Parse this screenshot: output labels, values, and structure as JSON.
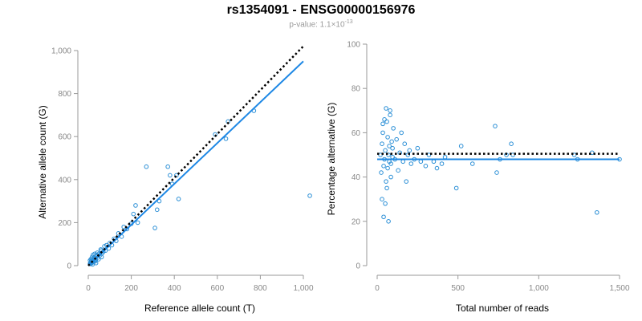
{
  "header": {
    "title": "rs1354091 - ENSG00000156976",
    "pvalue_prefix": "p-value: 1.1×10",
    "pvalue_exponent": "-13"
  },
  "colors": {
    "points": "#2b8fd6",
    "fit_line": "#1e88e5",
    "reference_line": "#000000"
  },
  "chart_data": [
    {
      "type": "scatter",
      "xlabel": "Reference allele count (T)",
      "ylabel": "Alternative allele count (G)",
      "xlim": [
        0,
        1000
      ],
      "ylim": [
        0,
        1000
      ],
      "xticks": [
        0,
        200,
        400,
        600,
        800,
        1000
      ],
      "xtick_labels": [
        "0",
        "200",
        "400",
        "600",
        "800",
        "1,000"
      ],
      "yticks": [
        0,
        200,
        400,
        600,
        800,
        1000
      ],
      "ytick_labels": [
        "0",
        "200",
        "400",
        "600",
        "800",
        "1,000"
      ],
      "points": [
        [
          10,
          8
        ],
        [
          12,
          15
        ],
        [
          15,
          20
        ],
        [
          8,
          10
        ],
        [
          18,
          14
        ],
        [
          20,
          25
        ],
        [
          22,
          18
        ],
        [
          25,
          30
        ],
        [
          14,
          22
        ],
        [
          28,
          22
        ],
        [
          30,
          35
        ],
        [
          16,
          12
        ],
        [
          24,
          28
        ],
        [
          12,
          30
        ],
        [
          35,
          28
        ],
        [
          18,
          40
        ],
        [
          40,
          45
        ],
        [
          26,
          36
        ],
        [
          32,
          20
        ],
        [
          45,
          38
        ],
        [
          50,
          55
        ],
        [
          38,
          50
        ],
        [
          55,
          48
        ],
        [
          60,
          70
        ],
        [
          42,
          60
        ],
        [
          65,
          58
        ],
        [
          20,
          6
        ],
        [
          8,
          24
        ],
        [
          48,
          30
        ],
        [
          70,
          65
        ],
        [
          75,
          90
        ],
        [
          30,
          55
        ],
        [
          58,
          75
        ],
        [
          80,
          70
        ],
        [
          22,
          50
        ],
        [
          36,
          12
        ],
        [
          62,
          40
        ],
        [
          85,
          95
        ],
        [
          95,
          80
        ],
        [
          100,
          105
        ],
        [
          110,
          95
        ],
        [
          120,
          125
        ],
        [
          130,
          115
        ],
        [
          140,
          150
        ],
        [
          155,
          135
        ],
        [
          165,
          180
        ],
        [
          180,
          170
        ],
        [
          200,
          195
        ],
        [
          210,
          240
        ],
        [
          220,
          280
        ],
        [
          230,
          200
        ],
        [
          270,
          460
        ],
        [
          310,
          175
        ],
        [
          320,
          260
        ],
        [
          330,
          300
        ],
        [
          370,
          460
        ],
        [
          380,
          420
        ],
        [
          390,
          380
        ],
        [
          410,
          420
        ],
        [
          420,
          310
        ],
        [
          590,
          610
        ],
        [
          640,
          590
        ],
        [
          650,
          670
        ],
        [
          770,
          720
        ],
        [
          1030,
          325
        ]
      ],
      "fit_line": [
        [
          0,
          0
        ],
        [
          1000,
          950
        ]
      ],
      "reference_line": [
        [
          0,
          0
        ],
        [
          1000,
          1020
        ]
      ]
    },
    {
      "type": "scatter",
      "xlabel": "Total number of reads",
      "ylabel": "Percentage alternative (G)",
      "xlim": [
        0,
        1500
      ],
      "ylim": [
        0,
        100
      ],
      "xticks": [
        0,
        500,
        1000,
        1500
      ],
      "xtick_labels": [
        "0",
        "500",
        "1,000",
        "1,500"
      ],
      "yticks": [
        0,
        20,
        40,
        60,
        80,
        100
      ],
      "ytick_labels": [
        "0",
        "20",
        "40",
        "60",
        "80",
        "100"
      ],
      "points": [
        [
          20,
          50
        ],
        [
          25,
          42
        ],
        [
          30,
          55
        ],
        [
          35,
          60
        ],
        [
          40,
          45
        ],
        [
          45,
          48
        ],
        [
          50,
          52
        ],
        [
          55,
          38
        ],
        [
          60,
          65
        ],
        [
          65,
          58
        ],
        [
          70,
          50
        ],
        [
          75,
          47
        ],
        [
          80,
          70
        ],
        [
          85,
          40
        ],
        [
          90,
          56
        ],
        [
          95,
          49
        ],
        [
          100,
          62
        ],
        [
          30,
          30
        ],
        [
          40,
          22
        ],
        [
          50,
          28
        ],
        [
          60,
          35
        ],
        [
          70,
          20
        ],
        [
          80,
          68
        ],
        [
          55,
          71
        ],
        [
          45,
          66
        ],
        [
          35,
          64
        ],
        [
          65,
          44
        ],
        [
          75,
          54
        ],
        [
          85,
          46
        ],
        [
          95,
          53
        ],
        [
          110,
          48
        ],
        [
          120,
          57
        ],
        [
          130,
          43
        ],
        [
          140,
          51
        ],
        [
          150,
          60
        ],
        [
          160,
          47
        ],
        [
          170,
          55
        ],
        [
          180,
          38
        ],
        [
          190,
          50
        ],
        [
          200,
          52
        ],
        [
          210,
          46
        ],
        [
          230,
          48
        ],
        [
          250,
          53
        ],
        [
          270,
          47
        ],
        [
          300,
          45
        ],
        [
          320,
          50
        ],
        [
          350,
          47
        ],
        [
          370,
          44
        ],
        [
          400,
          46
        ],
        [
          420,
          49
        ],
        [
          490,
          35
        ],
        [
          520,
          54
        ],
        [
          590,
          46
        ],
        [
          730,
          63
        ],
        [
          740,
          42
        ],
        [
          760,
          48
        ],
        [
          800,
          50
        ],
        [
          830,
          55
        ],
        [
          840,
          50
        ],
        [
          1220,
          50
        ],
        [
          1240,
          48
        ],
        [
          1330,
          51
        ],
        [
          1360,
          24
        ],
        [
          1500,
          48
        ]
      ],
      "fit_line": [
        [
          0,
          48
        ],
        [
          1500,
          48
        ]
      ],
      "reference_line": [
        [
          0,
          50.5
        ],
        [
          1500,
          50.5
        ]
      ]
    }
  ]
}
